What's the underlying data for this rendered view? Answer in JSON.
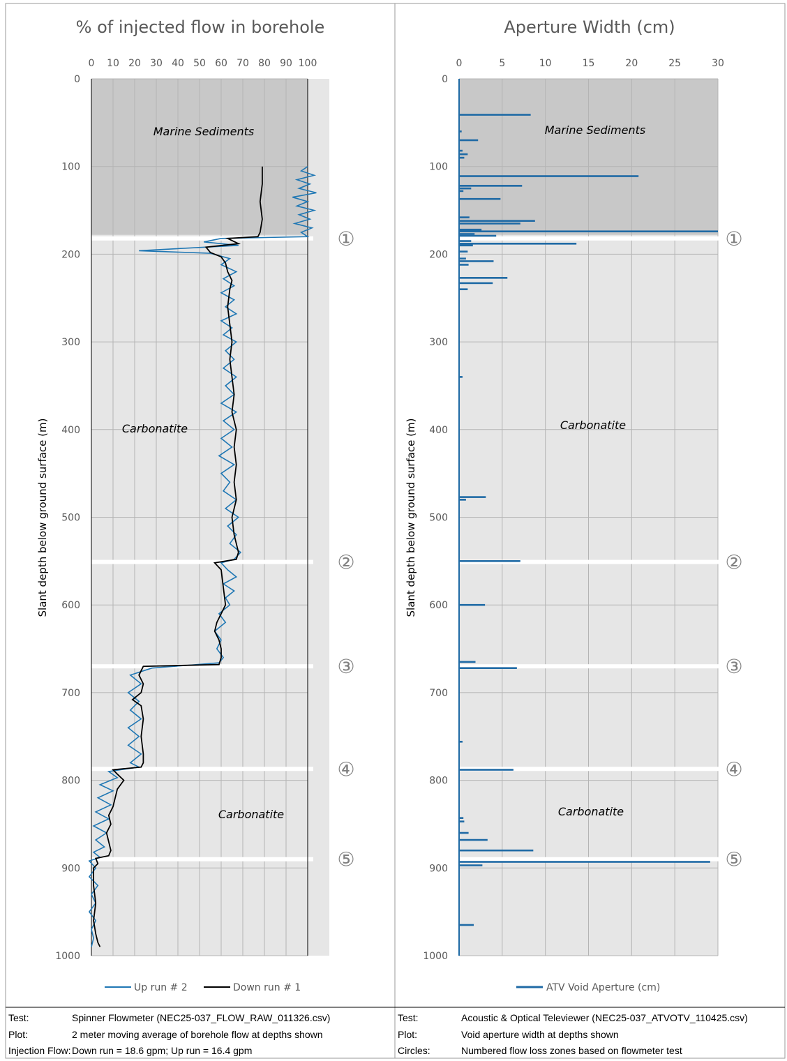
{
  "footer": {
    "left": [
      {
        "label": "Test:",
        "value": "Spinner Flowmeter (NEC25-037_FLOW_RAW_011326.csv)"
      },
      {
        "label": "Plot:",
        "value": "2 meter moving average of borehole flow at depths shown"
      },
      {
        "label": "Injection Flow:",
        "value": "Down run = 18.6 gpm; Up run = 16.4 gpm"
      }
    ],
    "right": [
      {
        "label": "Test:",
        "value": "Acoustic & Optical Televiewer (NEC25-037_ATVOTV_110425.csv)"
      },
      {
        "label": "Plot:",
        "value": "Void aperture width at depths shown"
      },
      {
        "label": "Circles:",
        "value": "Numbered flow loss zones based on flowmeter test"
      }
    ]
  },
  "chart_data": [
    {
      "type": "line",
      "title": "% of injected flow in borehole",
      "ylabel": "Slant depth below ground surface (m)",
      "xlim": [
        0,
        100
      ],
      "x_ticks": [
        "0",
        "10",
        "20",
        "30",
        "40",
        "50",
        "60",
        "70",
        "80",
        "90",
        "100"
      ],
      "ylim": [
        0,
        1000
      ],
      "y_ticks": [
        "0",
        "100",
        "200",
        "300",
        "400",
        "500",
        "600",
        "700",
        "800",
        "900",
        "1000"
      ],
      "y_reversed": true,
      "grid": true,
      "legend_position": "bottom",
      "zones": [
        {
          "label": "Marine Sediments",
          "from": 0,
          "to": 178,
          "color": "#c8c8c8"
        },
        {
          "label": "Carbonatite",
          "from": 178,
          "to": 1000,
          "color": "#e6e6e6"
        },
        {
          "label": "Carbonatite",
          "from": 790,
          "to": 1000,
          "color": "#e6e6e6"
        }
      ],
      "flow_loss_zones": [
        {
          "marker": "①",
          "depth": 182
        },
        {
          "marker": "②",
          "depth": 551
        },
        {
          "marker": "③",
          "depth": 670
        },
        {
          "marker": "④",
          "depth": 787
        },
        {
          "marker": "⑤",
          "depth": 890
        }
      ],
      "series": [
        {
          "name": "Up run # 2",
          "color": "#1f77b4",
          "points": [
            [
              100,
              100
            ],
            [
              97,
              105
            ],
            [
              103,
              110
            ],
            [
              95,
              115
            ],
            [
              101,
              120
            ],
            [
              96,
              125
            ],
            [
              104,
              130
            ],
            [
              93,
              135
            ],
            [
              100,
              140
            ],
            [
              95,
              145
            ],
            [
              103,
              150
            ],
            [
              96,
              155
            ],
            [
              101,
              160
            ],
            [
              94,
              165
            ],
            [
              102,
              170
            ],
            [
              97,
              175
            ],
            [
              100,
              180
            ],
            [
              60,
              182
            ],
            [
              52,
              186
            ],
            [
              68,
              190
            ],
            [
              22,
              196
            ],
            [
              55,
              199
            ],
            [
              64,
              205
            ],
            [
              60,
              212
            ],
            [
              67,
              220
            ],
            [
              61,
              228
            ],
            [
              66,
              236
            ],
            [
              60,
              244
            ],
            [
              66,
              252
            ],
            [
              62,
              260
            ],
            [
              67,
              268
            ],
            [
              60,
              276
            ],
            [
              65,
              284
            ],
            [
              61,
              292
            ],
            [
              67,
              300
            ],
            [
              62,
              310
            ],
            [
              66,
              320
            ],
            [
              61,
              330
            ],
            [
              67,
              340
            ],
            [
              62,
              350
            ],
            [
              66,
              360
            ],
            [
              60,
              370
            ],
            [
              67,
              380
            ],
            [
              61,
              390
            ],
            [
              66,
              400
            ],
            [
              60,
              410
            ],
            [
              65,
              420
            ],
            [
              59,
              430
            ],
            [
              66,
              440
            ],
            [
              60,
              450
            ],
            [
              64,
              460
            ],
            [
              61,
              470
            ],
            [
              67,
              480
            ],
            [
              62,
              490
            ],
            [
              68,
              500
            ],
            [
              63,
              510
            ],
            [
              67,
              520
            ],
            [
              64,
              530
            ],
            [
              69,
              540
            ],
            [
              66,
              548
            ],
            [
              60,
              552
            ],
            [
              63,
              560
            ],
            [
              67,
              568
            ],
            [
              61,
              576
            ],
            [
              66,
              584
            ],
            [
              62,
              592
            ],
            [
              64,
              600
            ],
            [
              59,
              610
            ],
            [
              62,
              620
            ],
            [
              57,
              630
            ],
            [
              60,
              640
            ],
            [
              58,
              650
            ],
            [
              61,
              660
            ],
            [
              59,
              666
            ],
            [
              28,
              672
            ],
            [
              18,
              680
            ],
            [
              23,
              690
            ],
            [
              17,
              700
            ],
            [
              22,
              710
            ],
            [
              18,
              720
            ],
            [
              23,
              730
            ],
            [
              17,
              740
            ],
            [
              22,
              750
            ],
            [
              17,
              760
            ],
            [
              23,
              770
            ],
            [
              18,
              780
            ],
            [
              22,
              785
            ],
            [
              8,
              790
            ],
            [
              12,
              797
            ],
            [
              4,
              805
            ],
            [
              10,
              812
            ],
            [
              3,
              820
            ],
            [
              9,
              828
            ],
            [
              2,
              836
            ],
            [
              8,
              844
            ],
            [
              1,
              852
            ],
            [
              7,
              860
            ],
            [
              2,
              868
            ],
            [
              6,
              876
            ],
            [
              1,
              882
            ],
            [
              4,
              888
            ],
            [
              -1,
              892
            ],
            [
              2,
              900
            ],
            [
              -1,
              910
            ],
            [
              3,
              920
            ],
            [
              0,
              930
            ],
            [
              2,
              940
            ],
            [
              -1,
              950
            ],
            [
              2,
              960
            ],
            [
              0,
              970
            ],
            [
              1,
              980
            ],
            [
              0,
              990
            ]
          ]
        },
        {
          "name": "Down run # 1",
          "color": "#000000",
          "points": [
            [
              79,
              100
            ],
            [
              79,
              120
            ],
            [
              78,
              140
            ],
            [
              79,
              160
            ],
            [
              78,
              175
            ],
            [
              77,
              180
            ],
            [
              63,
              182
            ],
            [
              68,
              188
            ],
            [
              53,
              192
            ],
            [
              55,
              198
            ],
            [
              60,
              203
            ],
            [
              62,
              210
            ],
            [
              63,
              220
            ],
            [
              65,
              230
            ],
            [
              64,
              240
            ],
            [
              63,
              260
            ],
            [
              64,
              280
            ],
            [
              65,
              300
            ],
            [
              64,
              320
            ],
            [
              65,
              340
            ],
            [
              66,
              360
            ],
            [
              65,
              380
            ],
            [
              67,
              400
            ],
            [
              66,
              420
            ],
            [
              67,
              440
            ],
            [
              66,
              460
            ],
            [
              67,
              480
            ],
            [
              65,
              500
            ],
            [
              66,
              520
            ],
            [
              68,
              540
            ],
            [
              67,
              548
            ],
            [
              57,
              552
            ],
            [
              60,
              560
            ],
            [
              61,
              580
            ],
            [
              62,
              600
            ],
            [
              60,
              610
            ],
            [
              58,
              620
            ],
            [
              57,
              630
            ],
            [
              59,
              640
            ],
            [
              60,
              650
            ],
            [
              60,
              660
            ],
            [
              59,
              668
            ],
            [
              24,
              670
            ],
            [
              22,
              680
            ],
            [
              24,
              690
            ],
            [
              23,
              700
            ],
            [
              19,
              708
            ],
            [
              23,
              715
            ],
            [
              24,
              730
            ],
            [
              23,
              750
            ],
            [
              24,
              770
            ],
            [
              24,
              780
            ],
            [
              23,
              785
            ],
            [
              10,
              788
            ],
            [
              12,
              793
            ],
            [
              15,
              800
            ],
            [
              12,
              810
            ],
            [
              11,
              820
            ],
            [
              10,
              830
            ],
            [
              8,
              840
            ],
            [
              9,
              850
            ],
            [
              7,
              860
            ],
            [
              8,
              870
            ],
            [
              9,
              880
            ],
            [
              8,
              886
            ],
            [
              2,
              889
            ],
            [
              3,
              895
            ],
            [
              1,
              900
            ],
            [
              1,
              920
            ],
            [
              2,
              940
            ],
            [
              1,
              960
            ],
            [
              2,
              975
            ],
            [
              3,
              985
            ],
            [
              4,
              990
            ]
          ]
        }
      ]
    },
    {
      "type": "bar",
      "orientation": "horizontal",
      "title": "Aperture Width (cm)",
      "ylabel": "Slant depth below ground surface (m)",
      "xlim": [
        0,
        30
      ],
      "x_ticks": [
        "0",
        "5",
        "10",
        "15",
        "20",
        "25",
        "30"
      ],
      "ylim": [
        0,
        1000
      ],
      "y_ticks": [
        "0",
        "100",
        "200",
        "300",
        "400",
        "500",
        "600",
        "700",
        "800",
        "900",
        "1000"
      ],
      "y_reversed": true,
      "grid": true,
      "legend_position": "bottom",
      "zones": [
        {
          "label": "Marine Sediments",
          "from": 0,
          "to": 178,
          "color": "#c8c8c8"
        },
        {
          "label": "Carbonatite",
          "from": 178,
          "to": 1000,
          "color": "#e6e6e6"
        },
        {
          "label": "Carbonatite",
          "from": 790,
          "to": 1000,
          "color": "#e6e6e6"
        }
      ],
      "flow_loss_zones": [
        {
          "marker": "①",
          "depth": 182
        },
        {
          "marker": "②",
          "depth": 551
        },
        {
          "marker": "③",
          "depth": 670
        },
        {
          "marker": "④",
          "depth": 787
        },
        {
          "marker": "⑤",
          "depth": 890
        }
      ],
      "series": [
        {
          "name": "ATV Void Aperture (cm)",
          "color": "#1f6aa5",
          "bars": [
            [
              41,
              8.3
            ],
            [
              60,
              0.3
            ],
            [
              70,
              2.2
            ],
            [
              82,
              0.4
            ],
            [
              86,
              1.0
            ],
            [
              90,
              0.6
            ],
            [
              111,
              20.8
            ],
            [
              122,
              7.3
            ],
            [
              125,
              1.4
            ],
            [
              128,
              0.5
            ],
            [
              137,
              4.8
            ],
            [
              158,
              1.2
            ],
            [
              162,
              8.8
            ],
            [
              165,
              7.1
            ],
            [
              172,
              2.6
            ],
            [
              174,
              30.0
            ],
            [
              177,
              1.8
            ],
            [
              179,
              4.3
            ],
            [
              185,
              1.4
            ],
            [
              188,
              13.6
            ],
            [
              190,
              1.6
            ],
            [
              197,
              1.0
            ],
            [
              205,
              0.8
            ],
            [
              208,
              4.0
            ],
            [
              212,
              1.1
            ],
            [
              227,
              5.6
            ],
            [
              233,
              3.9
            ],
            [
              240,
              1.0
            ],
            [
              340,
              0.4
            ],
            [
              477,
              3.1
            ],
            [
              480,
              0.8
            ],
            [
              550,
              7.1
            ],
            [
              600,
              3.0
            ],
            [
              665,
              1.9
            ],
            [
              672,
              6.7
            ],
            [
              756,
              0.4
            ],
            [
              788,
              6.3
            ],
            [
              843,
              0.5
            ],
            [
              847,
              0.6
            ],
            [
              860,
              1.1
            ],
            [
              868,
              3.3
            ],
            [
              880,
              8.6
            ],
            [
              893,
              29.1
            ],
            [
              897,
              2.7
            ],
            [
              965,
              1.7
            ]
          ]
        }
      ]
    }
  ]
}
